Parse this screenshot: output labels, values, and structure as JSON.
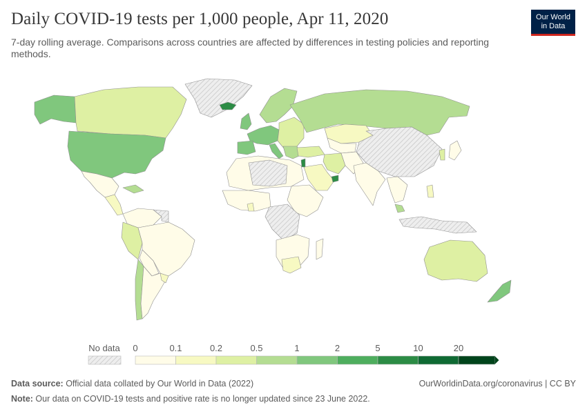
{
  "header": {
    "title": "Daily COVID-19 tests per 1,000 people, Apr 11, 2020",
    "subtitle": "7-day rolling average. Comparisons across countries are affected by differences in testing policies and reporting methods."
  },
  "logo": {
    "line1": "Our World",
    "line2": "in Data"
  },
  "legend": {
    "no_data_label": "No data",
    "bins": [
      {
        "label": "0",
        "color": "#fffce8"
      },
      {
        "label": "0.1",
        "color": "#f7f9c2"
      },
      {
        "label": "0.2",
        "color": "#def0a3"
      },
      {
        "label": "0.5",
        "color": "#b4dd92"
      },
      {
        "label": "1",
        "color": "#80c77d"
      },
      {
        "label": "2",
        "color": "#4eae5e"
      },
      {
        "label": "5",
        "color": "#2c8c45"
      },
      {
        "label": "10",
        "color": "#0f6a33"
      },
      {
        "label": "20",
        "color": "#00441b"
      }
    ]
  },
  "footer": {
    "source_label": "Data source:",
    "source_text": " Official data collated by Our World in Data (2022)",
    "note_label": "Note:",
    "note_text": " Our data on COVID-19 tests and positive rate is no longer updated since 23 June 2022.",
    "url": "OurWorldinData.org/coronavirus | CC BY"
  },
  "colors": {
    "no_data": "#e6e6e6",
    "border": "#9a9a9a",
    "accent": "#ce261e",
    "logo_bg": "#002147"
  }
}
